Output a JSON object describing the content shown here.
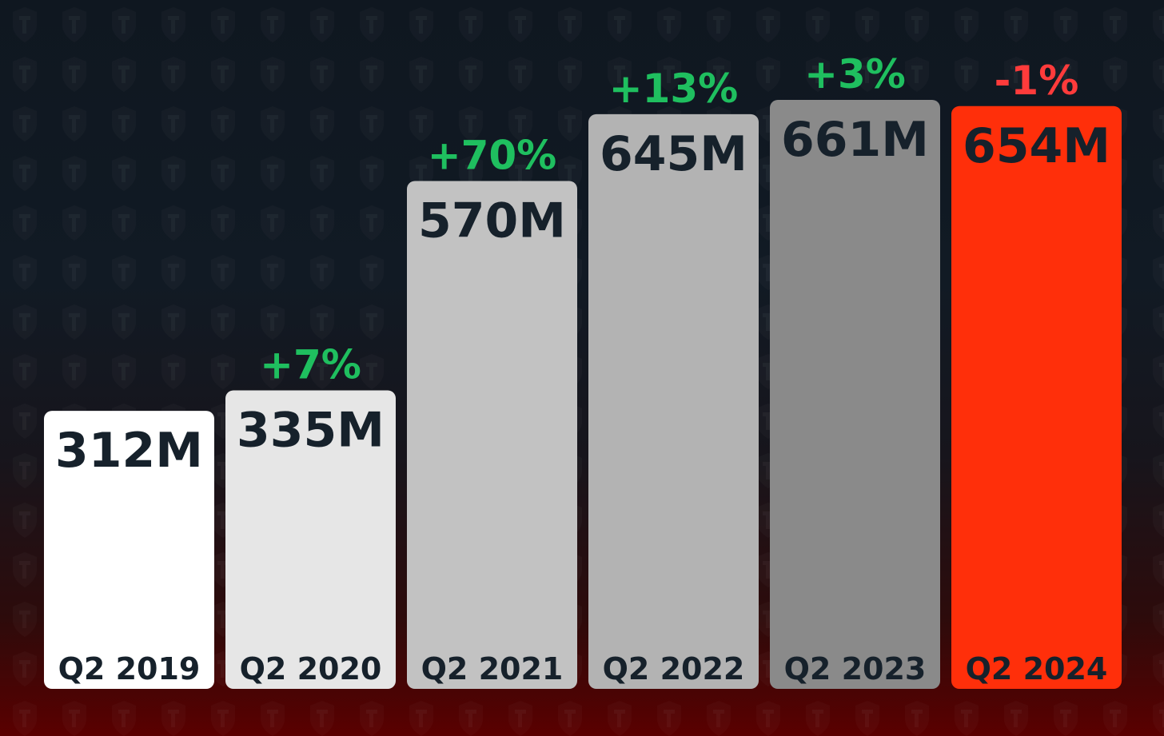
{
  "chart_data": {
    "type": "bar",
    "categories": [
      "Q2 2019",
      "Q2 2020",
      "Q2 2021",
      "Q2 2022",
      "Q2 2023",
      "Q2 2024"
    ],
    "values": [
      312,
      335,
      570,
      645,
      661,
      654
    ],
    "value_labels": [
      "312M",
      "335M",
      "570M",
      "645M",
      "661M",
      "654M"
    ],
    "changes": [
      "",
      "+7%",
      "+70%",
      "+13%",
      "+3%",
      "-1%"
    ],
    "bar_colors": [
      "#ffffff",
      "#e6e6e6",
      "#c2c2c2",
      "#b3b3b3",
      "#8a8a8a",
      "#ff2f0a"
    ],
    "change_colors": {
      "positive": "#1fbf5f",
      "negative": "#ff3b3b"
    },
    "text_color": "#16212b",
    "ylim": [
      0,
      700
    ],
    "grid": false,
    "legend": false
  }
}
